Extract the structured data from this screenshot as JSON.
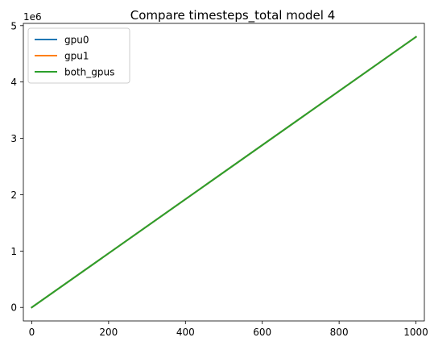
{
  "chart_data": {
    "type": "line",
    "title": "Compare timesteps_total model 4",
    "xlabel": "",
    "ylabel": "",
    "y_offset_label": "1e6",
    "xlim": [
      -21.9,
      1021.9
    ],
    "ylim": [
      -0.24,
      5.04
    ],
    "y_scale_factor": 1000000,
    "xticks": [
      0,
      200,
      400,
      600,
      800,
      1000
    ],
    "yticks": [
      0,
      1,
      2,
      3,
      4,
      5
    ],
    "grid": false,
    "legend": "top-left",
    "series": [
      {
        "name": "gpu0",
        "color": "#1f77b4",
        "x": [
          0,
          1000
        ],
        "y": [
          0,
          4.8
        ]
      },
      {
        "name": "gpu1",
        "color": "#ff7f0e",
        "x": [
          0,
          1000
        ],
        "y": [
          0,
          4.8
        ]
      },
      {
        "name": "both_gpus",
        "color": "#2ca02c",
        "x": [
          0,
          1000
        ],
        "y": [
          0,
          4.8
        ]
      }
    ]
  }
}
